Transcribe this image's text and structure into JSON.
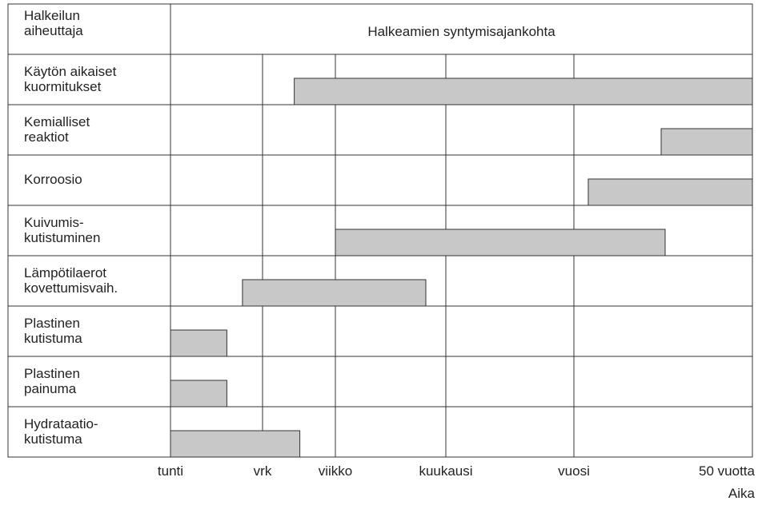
{
  "chart_data": {
    "type": "range-bar",
    "title": "Halkeamien syntymisajankohta",
    "ylabel": "Halkeilun\naiheuttaja",
    "xlabel": "Aika",
    "categories": [
      "Käytön aikaiset\nkuormitukset",
      "Kemialliset\nreaktiot",
      "Korroosio",
      "Kuivumis-\nkutistuminen",
      "Lämpötilaerot\nkovettumisvaih.",
      "Plastinen\nkutistuma",
      "Plastinen\npainuma",
      "Hydrataatio-\nkutistuma"
    ],
    "values": [
      [
        56,
        438000
      ],
      [
        59300,
        438000
      ],
      [
        12000,
        438000
      ],
      [
        168,
        64700
      ],
      [
        12,
        553
      ],
      [
        1,
        7
      ],
      [
        1,
        7
      ],
      [
        1,
        65
      ]
    ],
    "color": "#c8c8c8",
    "xscale": "log",
    "xlim": [
      1,
      438000
    ],
    "xticks": [
      {
        "value": 1,
        "label": "tunti"
      },
      {
        "value": 24,
        "label": "vrk"
      },
      {
        "value": 168,
        "label": "viikko"
      },
      {
        "value": 720,
        "label": "kuukausi"
      },
      {
        "value": 8760,
        "label": "vuosi"
      },
      {
        "value": 438000,
        "label": "50 vuotta"
      }
    ],
    "grid": true
  }
}
